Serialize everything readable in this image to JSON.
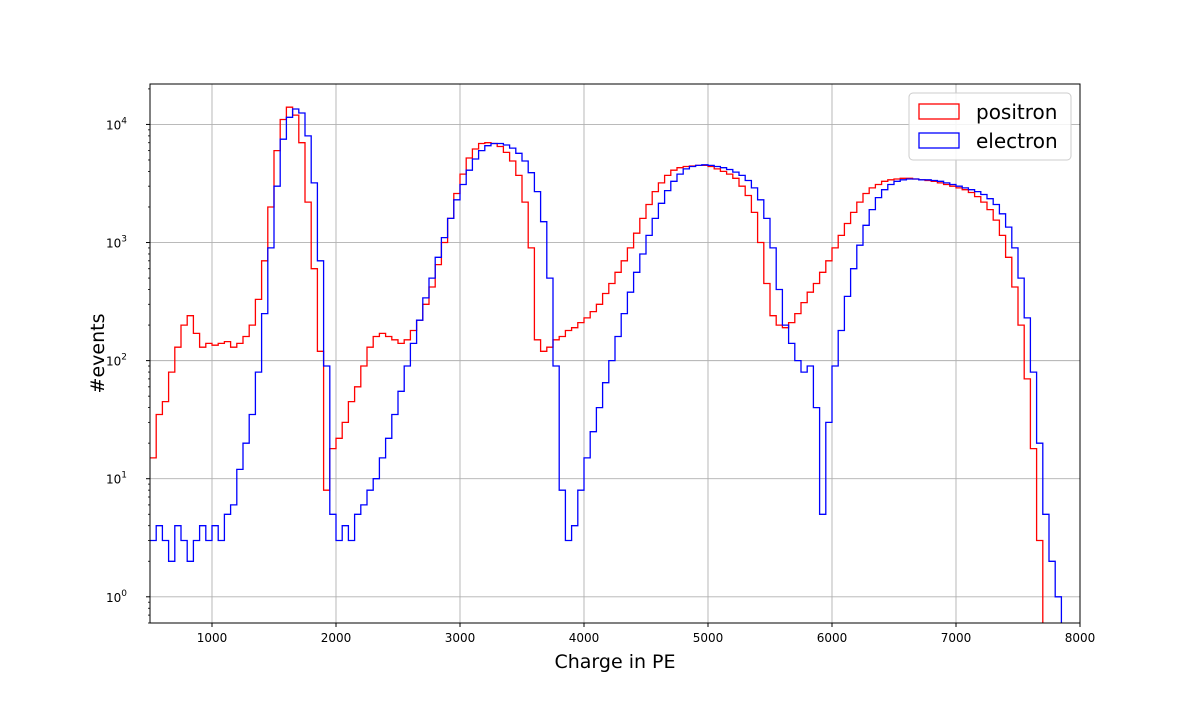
{
  "chart_data": {
    "type": "histogram",
    "xlabel": "Charge in PE",
    "ylabel": "#events",
    "xlim": [
      500,
      8000
    ],
    "ylim": [
      0.6,
      22000
    ],
    "yscale": "log",
    "grid": true,
    "legend_position": "top-right",
    "x_ticks": [
      "1000",
      "2000",
      "3000",
      "4000",
      "5000",
      "6000",
      "7000",
      "8000"
    ],
    "y_ticks": [
      {
        "value": 1,
        "base": "10",
        "exp": "0"
      },
      {
        "value": 10,
        "base": "10",
        "exp": "1"
      },
      {
        "value": 100,
        "base": "10",
        "exp": "2"
      },
      {
        "value": 1000,
        "base": "10",
        "exp": "3"
      },
      {
        "value": 10000,
        "base": "10",
        "exp": "4"
      }
    ],
    "series": [
      {
        "name": "positron",
        "color": "#ff0000",
        "points": [
          [
            500,
            15
          ],
          [
            550,
            35
          ],
          [
            600,
            45
          ],
          [
            650,
            80
          ],
          [
            700,
            130
          ],
          [
            750,
            200
          ],
          [
            800,
            240
          ],
          [
            850,
            170
          ],
          [
            900,
            130
          ],
          [
            950,
            140
          ],
          [
            1000,
            135
          ],
          [
            1050,
            140
          ],
          [
            1100,
            145
          ],
          [
            1150,
            130
          ],
          [
            1200,
            140
          ],
          [
            1250,
            160
          ],
          [
            1300,
            200
          ],
          [
            1350,
            330
          ],
          [
            1400,
            700
          ],
          [
            1450,
            2000
          ],
          [
            1500,
            6000
          ],
          [
            1550,
            11000
          ],
          [
            1600,
            14000
          ],
          [
            1650,
            12000
          ],
          [
            1700,
            7000
          ],
          [
            1750,
            2200
          ],
          [
            1800,
            600
          ],
          [
            1850,
            120
          ],
          [
            1900,
            8
          ],
          [
            1950,
            18
          ],
          [
            2000,
            22
          ],
          [
            2050,
            30
          ],
          [
            2100,
            45
          ],
          [
            2150,
            60
          ],
          [
            2200,
            90
          ],
          [
            2250,
            130
          ],
          [
            2300,
            160
          ],
          [
            2350,
            170
          ],
          [
            2400,
            160
          ],
          [
            2450,
            150
          ],
          [
            2500,
            140
          ],
          [
            2550,
            150
          ],
          [
            2600,
            180
          ],
          [
            2650,
            220
          ],
          [
            2700,
            300
          ],
          [
            2750,
            420
          ],
          [
            2800,
            650
          ],
          [
            2850,
            1000
          ],
          [
            2900,
            1600
          ],
          [
            2950,
            2600
          ],
          [
            3000,
            3800
          ],
          [
            3050,
            5200
          ],
          [
            3100,
            6200
          ],
          [
            3150,
            6900
          ],
          [
            3200,
            7000
          ],
          [
            3250,
            6900
          ],
          [
            3300,
            6500
          ],
          [
            3350,
            5800
          ],
          [
            3400,
            4900
          ],
          [
            3450,
            3700
          ],
          [
            3500,
            2200
          ],
          [
            3550,
            900
          ],
          [
            3600,
            150
          ],
          [
            3650,
            120
          ],
          [
            3700,
            130
          ],
          [
            3750,
            150
          ],
          [
            3800,
            160
          ],
          [
            3850,
            180
          ],
          [
            3900,
            190
          ],
          [
            3950,
            210
          ],
          [
            4000,
            230
          ],
          [
            4050,
            260
          ],
          [
            4100,
            300
          ],
          [
            4150,
            370
          ],
          [
            4200,
            450
          ],
          [
            4250,
            560
          ],
          [
            4300,
            700
          ],
          [
            4350,
            900
          ],
          [
            4400,
            1200
          ],
          [
            4450,
            1600
          ],
          [
            4500,
            2100
          ],
          [
            4550,
            2700
          ],
          [
            4600,
            3200
          ],
          [
            4650,
            3700
          ],
          [
            4700,
            4100
          ],
          [
            4750,
            4300
          ],
          [
            4800,
            4400
          ],
          [
            4850,
            4450
          ],
          [
            4900,
            4500
          ],
          [
            4950,
            4500
          ],
          [
            5000,
            4400
          ],
          [
            5050,
            4200
          ],
          [
            5100,
            4000
          ],
          [
            5150,
            3800
          ],
          [
            5200,
            3500
          ],
          [
            5250,
            3000
          ],
          [
            5300,
            2500
          ],
          [
            5350,
            1800
          ],
          [
            5400,
            1000
          ],
          [
            5450,
            450
          ],
          [
            5500,
            240
          ],
          [
            5550,
            200
          ],
          [
            5600,
            190
          ],
          [
            5650,
            210
          ],
          [
            5700,
            250
          ],
          [
            5750,
            310
          ],
          [
            5800,
            380
          ],
          [
            5850,
            450
          ],
          [
            5900,
            560
          ],
          [
            5950,
            700
          ],
          [
            6000,
            900
          ],
          [
            6050,
            1150
          ],
          [
            6100,
            1450
          ],
          [
            6150,
            1800
          ],
          [
            6200,
            2200
          ],
          [
            6250,
            2600
          ],
          [
            6300,
            2900
          ],
          [
            6350,
            3100
          ],
          [
            6400,
            3300
          ],
          [
            6450,
            3400
          ],
          [
            6500,
            3450
          ],
          [
            6550,
            3500
          ],
          [
            6600,
            3500
          ],
          [
            6650,
            3450
          ],
          [
            6700,
            3400
          ],
          [
            6750,
            3350
          ],
          [
            6800,
            3300
          ],
          [
            6850,
            3200
          ],
          [
            6900,
            3100
          ],
          [
            6950,
            3000
          ],
          [
            7000,
            2900
          ],
          [
            7050,
            2800
          ],
          [
            7100,
            2650
          ],
          [
            7150,
            2450
          ],
          [
            7200,
            2200
          ],
          [
            7250,
            1900
          ],
          [
            7300,
            1550
          ],
          [
            7350,
            1150
          ],
          [
            7400,
            750
          ],
          [
            7450,
            420
          ],
          [
            7500,
            200
          ],
          [
            7550,
            70
          ],
          [
            7600,
            18
          ],
          [
            7650,
            3
          ],
          [
            7700,
            0.5
          ]
        ]
      },
      {
        "name": "electron",
        "color": "#0000ff",
        "points": [
          [
            500,
            3
          ],
          [
            550,
            4
          ],
          [
            600,
            3
          ],
          [
            650,
            2
          ],
          [
            700,
            4
          ],
          [
            750,
            3
          ],
          [
            800,
            2
          ],
          [
            850,
            3
          ],
          [
            900,
            4
          ],
          [
            950,
            3
          ],
          [
            1000,
            4
          ],
          [
            1050,
            3
          ],
          [
            1100,
            5
          ],
          [
            1150,
            6
          ],
          [
            1200,
            12
          ],
          [
            1250,
            20
          ],
          [
            1300,
            35
          ],
          [
            1350,
            80
          ],
          [
            1400,
            250
          ],
          [
            1450,
            900
          ],
          [
            1500,
            3000
          ],
          [
            1550,
            7500
          ],
          [
            1600,
            11500
          ],
          [
            1650,
            13500
          ],
          [
            1700,
            12500
          ],
          [
            1750,
            8000
          ],
          [
            1800,
            3200
          ],
          [
            1850,
            700
          ],
          [
            1900,
            90
          ],
          [
            1950,
            5
          ],
          [
            2000,
            3
          ],
          [
            2050,
            4
          ],
          [
            2100,
            3
          ],
          [
            2150,
            5
          ],
          [
            2200,
            6
          ],
          [
            2250,
            8
          ],
          [
            2300,
            10
          ],
          [
            2350,
            15
          ],
          [
            2400,
            22
          ],
          [
            2450,
            35
          ],
          [
            2500,
            55
          ],
          [
            2550,
            90
          ],
          [
            2600,
            140
          ],
          [
            2650,
            220
          ],
          [
            2700,
            340
          ],
          [
            2750,
            500
          ],
          [
            2800,
            750
          ],
          [
            2850,
            1100
          ],
          [
            2900,
            1600
          ],
          [
            2950,
            2300
          ],
          [
            3000,
            3100
          ],
          [
            3050,
            4100
          ],
          [
            3100,
            5100
          ],
          [
            3150,
            6000
          ],
          [
            3200,
            6600
          ],
          [
            3250,
            6900
          ],
          [
            3300,
            6900
          ],
          [
            3350,
            6700
          ],
          [
            3400,
            6300
          ],
          [
            3450,
            5700
          ],
          [
            3500,
            4900
          ],
          [
            3550,
            3900
          ],
          [
            3600,
            2700
          ],
          [
            3650,
            1500
          ],
          [
            3700,
            500
          ],
          [
            3750,
            90
          ],
          [
            3800,
            8
          ],
          [
            3850,
            3
          ],
          [
            3900,
            4
          ],
          [
            3950,
            8
          ],
          [
            4000,
            15
          ],
          [
            4050,
            25
          ],
          [
            4100,
            40
          ],
          [
            4150,
            65
          ],
          [
            4200,
            100
          ],
          [
            4250,
            160
          ],
          [
            4300,
            250
          ],
          [
            4350,
            380
          ],
          [
            4400,
            560
          ],
          [
            4450,
            800
          ],
          [
            4500,
            1150
          ],
          [
            4550,
            1600
          ],
          [
            4600,
            2150
          ],
          [
            4650,
            2750
          ],
          [
            4700,
            3300
          ],
          [
            4750,
            3800
          ],
          [
            4800,
            4200
          ],
          [
            4850,
            4400
          ],
          [
            4900,
            4500
          ],
          [
            4950,
            4550
          ],
          [
            5000,
            4500
          ],
          [
            5050,
            4400
          ],
          [
            5100,
            4300
          ],
          [
            5150,
            4150
          ],
          [
            5200,
            3950
          ],
          [
            5250,
            3700
          ],
          [
            5300,
            3350
          ],
          [
            5350,
            2900
          ],
          [
            5400,
            2300
          ],
          [
            5450,
            1600
          ],
          [
            5500,
            900
          ],
          [
            5550,
            400
          ],
          [
            5600,
            200
          ],
          [
            5650,
            140
          ],
          [
            5700,
            100
          ],
          [
            5750,
            80
          ],
          [
            5800,
            90
          ],
          [
            5850,
            40
          ],
          [
            5900,
            5
          ],
          [
            5950,
            30
          ],
          [
            6000,
            90
          ],
          [
            6050,
            180
          ],
          [
            6100,
            350
          ],
          [
            6150,
            600
          ],
          [
            6200,
            950
          ],
          [
            6250,
            1400
          ],
          [
            6300,
            1900
          ],
          [
            6350,
            2400
          ],
          [
            6400,
            2800
          ],
          [
            6450,
            3100
          ],
          [
            6500,
            3300
          ],
          [
            6550,
            3400
          ],
          [
            6600,
            3450
          ],
          [
            6650,
            3450
          ],
          [
            6700,
            3400
          ],
          [
            6750,
            3400
          ],
          [
            6800,
            3350
          ],
          [
            6850,
            3300
          ],
          [
            6900,
            3200
          ],
          [
            6950,
            3100
          ],
          [
            7000,
            3000
          ],
          [
            7050,
            2900
          ],
          [
            7100,
            2800
          ],
          [
            7150,
            2700
          ],
          [
            7200,
            2550
          ],
          [
            7250,
            2350
          ],
          [
            7300,
            2100
          ],
          [
            7350,
            1750
          ],
          [
            7400,
            1350
          ],
          [
            7450,
            900
          ],
          [
            7500,
            500
          ],
          [
            7550,
            230
          ],
          [
            7600,
            80
          ],
          [
            7650,
            20
          ],
          [
            7700,
            5
          ],
          [
            7750,
            2
          ],
          [
            7800,
            1
          ],
          [
            7850,
            0.5
          ]
        ]
      }
    ]
  }
}
